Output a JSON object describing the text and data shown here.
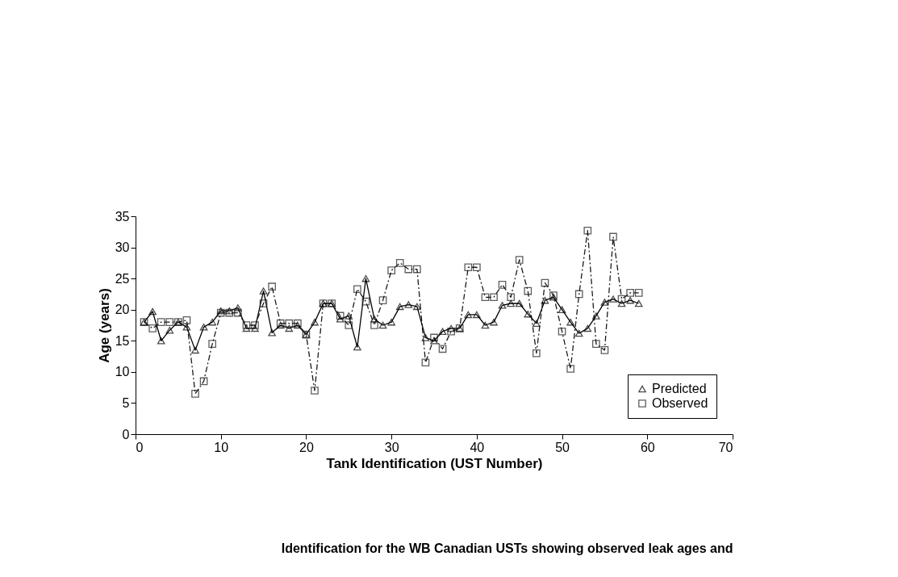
{
  "chart_data": {
    "type": "line",
    "xlabel": "Tank Identification (UST Number)",
    "ylabel": "Age (years)",
    "x": [
      1,
      2,
      3,
      4,
      5,
      6,
      7,
      8,
      9,
      10,
      11,
      12,
      13,
      14,
      15,
      16,
      17,
      18,
      19,
      20,
      21,
      22,
      23,
      24,
      25,
      26,
      27,
      28,
      29,
      30,
      31,
      32,
      33,
      34,
      35,
      36,
      37,
      38,
      39,
      40,
      41,
      42,
      43,
      44,
      45,
      46,
      47,
      48,
      49,
      50,
      51,
      52,
      53,
      54,
      55,
      56,
      57,
      58,
      59
    ],
    "series": [
      {
        "name": "Predicted",
        "color": "#000000",
        "marker": "triangle",
        "line_style": "solid",
        "values": [
          18,
          19.7,
          15,
          16.7,
          18,
          17.2,
          13.5,
          17.2,
          18,
          19.8,
          19.8,
          20.3,
          17,
          17,
          23,
          16.3,
          17.5,
          17,
          17.5,
          16,
          18,
          21,
          21,
          18.5,
          19,
          14,
          25,
          18.5,
          17.5,
          18,
          20.5,
          20.8,
          20.5,
          15.5,
          15,
          16.5,
          17,
          17,
          19.2,
          19.2,
          17.5,
          18,
          20.7,
          21,
          21,
          19.3,
          17.8,
          21.5,
          22,
          20,
          18,
          16.2,
          17,
          19,
          21.2,
          21.7,
          21,
          21.5,
          21
        ]
      },
      {
        "name": "Observed",
        "color": "#1a1a1a",
        "marker": "square",
        "line_style": "dashed",
        "values": [
          18,
          17,
          18,
          18,
          18,
          18.3,
          6.5,
          8.5,
          14.5,
          19.5,
          19.5,
          19.5,
          17.5,
          17.5,
          21,
          23.7,
          17.8,
          17.8,
          17.8,
          16,
          7,
          21,
          21,
          19,
          17.5,
          23.3,
          21.3,
          17.5,
          21.5,
          26.3,
          27.5,
          26.5,
          26.5,
          11.5,
          15.5,
          13.7,
          16.5,
          17,
          26.8,
          26.8,
          22,
          22,
          24,
          22,
          28,
          23,
          13,
          24.3,
          22.3,
          16.5,
          10.5,
          22.5,
          32.7,
          14.5,
          13.5,
          31.7,
          21.7,
          22.7,
          22.7
        ]
      }
    ],
    "xlim": [
      0,
      70
    ],
    "xticks": [
      0,
      10,
      20,
      30,
      40,
      50,
      60,
      70
    ],
    "ylim": [
      0,
      35
    ],
    "yticks": [
      0,
      5,
      10,
      15,
      20,
      25,
      30,
      35
    ],
    "grid": false,
    "legend": "bottom right",
    "annotations": [
      "Identification for the WB Canadian USTs showing observed leak ages and"
    ]
  }
}
